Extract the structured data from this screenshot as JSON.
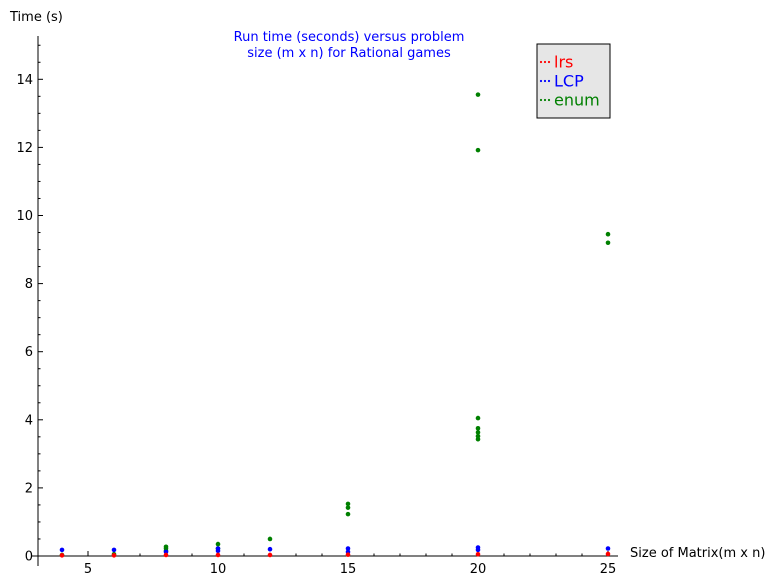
{
  "chart_data": {
    "type": "scatter",
    "title_lines": [
      "Run time (seconds) versus problem",
      "size (m x n) for Rational games"
    ],
    "xlabel": "Size of Matrix(m x n)",
    "ylabel": "Time (s)",
    "xlim": [
      3.5,
      25.4
    ],
    "ylim": [
      0,
      15.3
    ],
    "xticks": [
      5,
      10,
      15,
      20,
      25
    ],
    "yticks": [
      0,
      2,
      4,
      6,
      8,
      10,
      12,
      14
    ],
    "grid": false,
    "legend_position": "top-right",
    "colors": {
      "title": "#0000ff"
    },
    "series": [
      {
        "name": "enum",
        "color": "#008000",
        "points": [
          [
            4,
            0.03
          ],
          [
            6,
            0.05
          ],
          [
            8,
            0.15
          ],
          [
            8,
            0.22
          ],
          [
            8,
            0.27
          ],
          [
            10,
            0.22
          ],
          [
            10,
            0.35
          ],
          [
            12,
            0.5
          ],
          [
            15,
            1.23
          ],
          [
            15,
            1.42
          ],
          [
            15,
            1.53
          ],
          [
            20,
            3.43
          ],
          [
            20,
            3.52
          ],
          [
            20,
            3.63
          ],
          [
            20,
            3.75
          ],
          [
            20,
            4.05
          ],
          [
            20,
            11.92
          ],
          [
            20,
            13.55
          ],
          [
            25,
            9.2
          ],
          [
            25,
            9.45
          ]
        ]
      },
      {
        "name": "LCP",
        "color": "#0000ff",
        "points": [
          [
            4,
            0.18
          ],
          [
            6,
            0.18
          ],
          [
            8,
            0.12
          ],
          [
            10,
            0.15
          ],
          [
            10,
            0.22
          ],
          [
            12,
            0.2
          ],
          [
            15,
            0.12
          ],
          [
            15,
            0.22
          ],
          [
            20,
            0.18
          ],
          [
            20,
            0.25
          ],
          [
            25,
            0.22
          ]
        ]
      },
      {
        "name": "lrs",
        "color": "#ff0000",
        "points": [
          [
            4,
            0.02
          ],
          [
            6,
            0.02
          ],
          [
            8,
            0.03
          ],
          [
            10,
            0.03
          ],
          [
            12,
            0.03
          ],
          [
            15,
            0.04
          ],
          [
            20,
            0.05
          ],
          [
            25,
            0.06
          ]
        ]
      }
    ],
    "legend_order": [
      "lrs",
      "LCP",
      "enum"
    ]
  }
}
